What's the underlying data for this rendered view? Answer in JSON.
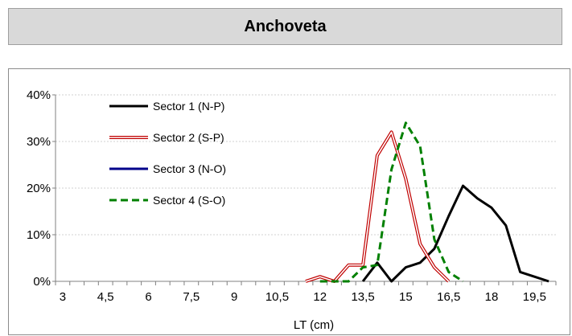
{
  "header": {
    "title": "Anchoveta"
  },
  "chart_data": {
    "type": "line",
    "title": "Anchoveta",
    "xlabel": "LT (cm)",
    "ylabel": "",
    "x": [
      3,
      3.5,
      4,
      4.5,
      5,
      5.5,
      6,
      6.5,
      7,
      7.5,
      8,
      8.5,
      9,
      9.5,
      10,
      10.5,
      11,
      11.5,
      12,
      12.5,
      13,
      13.5,
      14,
      14.5,
      15,
      15.5,
      16,
      16.5,
      17,
      17.5,
      18,
      18.5,
      19,
      19.5,
      20
    ],
    "x_tick_labels": [
      "3",
      "4,5",
      "6",
      "7,5",
      "9",
      "10,5",
      "12",
      "13,5",
      "15",
      "16,5",
      "18",
      "19,5"
    ],
    "y_ticks": [
      0,
      10,
      20,
      30,
      40
    ],
    "y_tick_labels": [
      "0%",
      "10%",
      "20%",
      "30%",
      "40%"
    ],
    "ylim": [
      0,
      40
    ],
    "grid": "horizontal",
    "legend_position": "top-left",
    "series": [
      {
        "name": "Sector 1 (N-P)",
        "color": "#000000",
        "style": "solid",
        "x": [
          13.5,
          14,
          14.5,
          15,
          15.5,
          16,
          16.5,
          17,
          17.5,
          18,
          18.5,
          19,
          19.5,
          20
        ],
        "values": [
          0,
          4,
          0,
          3,
          4,
          7,
          14,
          20.5,
          17.8,
          15.8,
          12,
          2,
          1,
          0
        ]
      },
      {
        "name": "Sector 2 (S-P)",
        "color": "#c00000",
        "style": "double",
        "x": [
          11.5,
          12,
          12.5,
          13,
          13.5,
          14,
          14.5,
          15,
          15.5,
          16,
          16.5
        ],
        "values": [
          0,
          1,
          0,
          3.5,
          3.5,
          27,
          32,
          22,
          8,
          3,
          0
        ]
      },
      {
        "name": "Sector 3 (N-O)",
        "color": "#00008b",
        "style": "solid",
        "x": [],
        "values": []
      },
      {
        "name": "Sector 4 (S-O)",
        "color": "#008000",
        "style": "dashed",
        "x": [
          12,
          12.5,
          13,
          13.5,
          14,
          14.5,
          15,
          15.5,
          16,
          16.5,
          17
        ],
        "values": [
          0,
          0,
          0,
          3,
          3.5,
          24,
          34,
          29,
          9,
          2,
          0
        ]
      }
    ]
  }
}
